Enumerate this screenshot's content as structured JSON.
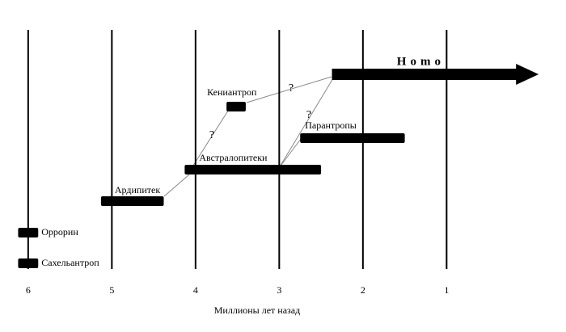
{
  "chart_data": {
    "type": "timeline",
    "x_label": "Миллионы лет назад",
    "xlim": [
      6.24,
      -0.33
    ],
    "xticks": [
      6,
      5,
      4,
      3,
      2,
      1
    ],
    "color": "#000000",
    "series": [
      {
        "name": "Сахельантроп",
        "range": [
          6.12,
          5.88
        ]
      },
      {
        "name": "Оррорин",
        "range": [
          6.12,
          5.88
        ]
      },
      {
        "name": "Ардипитек",
        "range": [
          5.13,
          4.38
        ]
      },
      {
        "name": "Австралопитеки",
        "range": [
          4.13,
          2.5
        ]
      },
      {
        "name": "Кениантроп",
        "range": [
          3.63,
          3.4
        ]
      },
      {
        "name": "Парантропы",
        "range": [
          2.75,
          1.5
        ]
      },
      {
        "name": "Homo",
        "range": [
          2.37,
          -0.1
        ]
      }
    ],
    "annotations": [
      "?",
      "?",
      "?"
    ]
  }
}
